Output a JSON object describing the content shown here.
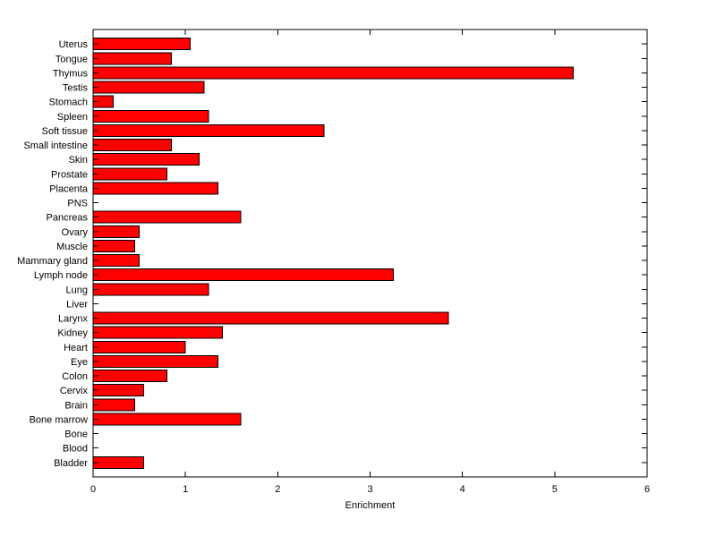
{
  "figure": {
    "background_color": "#ffffff"
  },
  "chart_data": {
    "type": "bar",
    "orientation": "horizontal",
    "title": "",
    "xlabel": "Enrichment",
    "ylabel": "",
    "xlim": [
      0,
      6
    ],
    "xticks": [
      0,
      1,
      2,
      3,
      4,
      5,
      6
    ],
    "grid": false,
    "legend": false,
    "bar_color": "#ff0000",
    "edge_color": "#000000",
    "axis_color": "#000000",
    "categories": [
      "Uterus",
      "Tongue",
      "Thymus",
      "Testis",
      "Stomach",
      "Spleen",
      "Soft tissue",
      "Small intestine",
      "Skin",
      "Prostate",
      "Placenta",
      "PNS",
      "Pancreas",
      "Ovary",
      "Muscle",
      "Mammary gland",
      "Lymph node",
      "Lung",
      "Liver",
      "Larynx",
      "Kidney",
      "Heart",
      "Eye",
      "Colon",
      "Cervix",
      "Brain",
      "Bone marrow",
      "Bone",
      "Blood",
      "Bladder"
    ],
    "values": [
      1.05,
      0.85,
      5.2,
      1.2,
      0.22,
      1.25,
      2.5,
      0.85,
      1.15,
      0.8,
      1.35,
      0,
      1.6,
      0.5,
      0.45,
      0.5,
      3.25,
      1.25,
      0,
      3.85,
      1.4,
      1.0,
      1.35,
      0.8,
      0.55,
      0.45,
      1.6,
      0,
      0,
      0.55
    ]
  }
}
